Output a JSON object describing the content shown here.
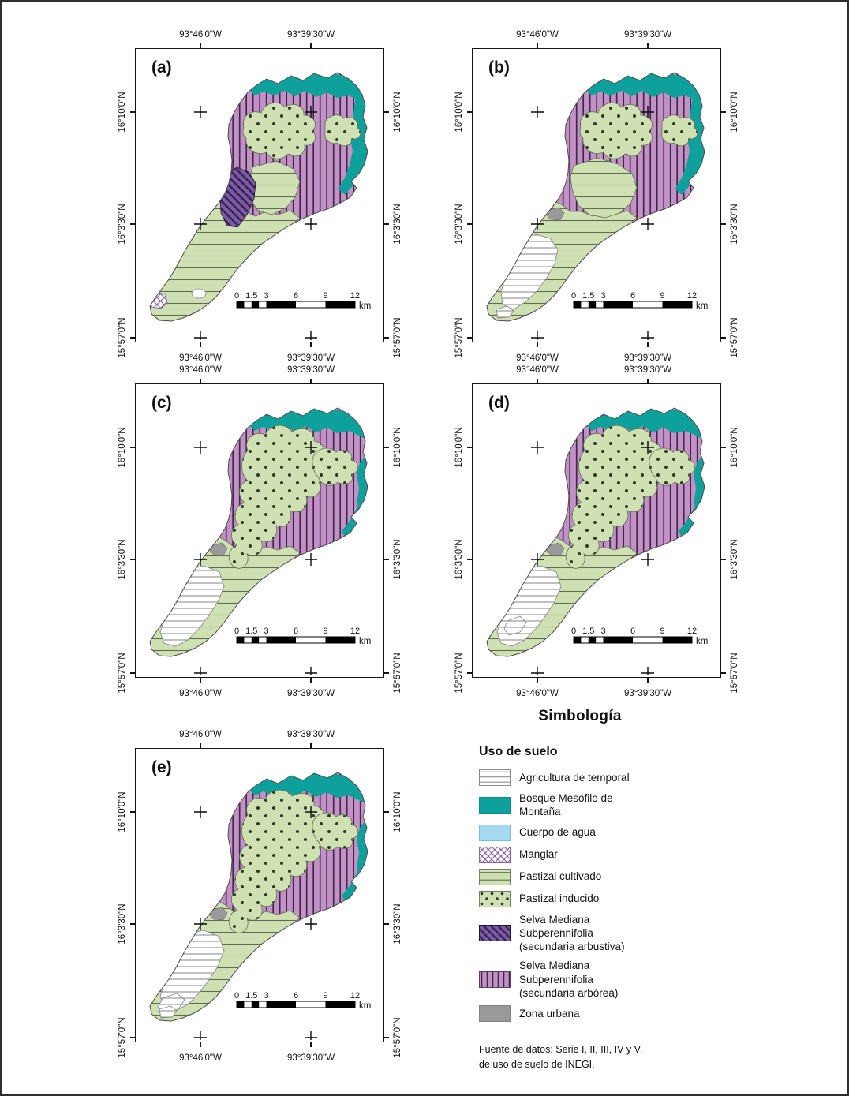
{
  "panels": [
    {
      "id": "a",
      "label": "(a)"
    },
    {
      "id": "b",
      "label": "(b)"
    },
    {
      "id": "c",
      "label": "(c)"
    },
    {
      "id": "d",
      "label": "(d)"
    },
    {
      "id": "e",
      "label": "(e)"
    }
  ],
  "axes": {
    "lon": [
      "93°46'0\"W",
      "93°39'30\"W"
    ],
    "lat": [
      "16°10'0\"N",
      "16°3'30\"N",
      "15°57'0\"N"
    ]
  },
  "scalebar": {
    "ticks": [
      "0",
      "1.5",
      "3",
      "6",
      "9",
      "12"
    ],
    "unit": "km"
  },
  "legend": {
    "title": "Simbología",
    "subtitle": "Uso de suelo",
    "items": [
      {
        "key": "agricultura",
        "label": "Agricultura de temporal"
      },
      {
        "key": "bosque",
        "label": "Bosque Mesófilo de\nMontaña"
      },
      {
        "key": "agua",
        "label": "Cuerpo de agua"
      },
      {
        "key": "manglar",
        "label": "Manglar"
      },
      {
        "key": "pastizal-cultivado",
        "label": "Pastizal cultivado"
      },
      {
        "key": "pastizal-inducido",
        "label": "Pastizal inducido"
      },
      {
        "key": "selva-arbustiva",
        "label": "Selva Mediana\nSubperennifolia\n(secundaria arbustiva)"
      },
      {
        "key": "selva-arborea",
        "label": "Selva Mediana\nSubperennifolia\n(secundaria arbórea)"
      },
      {
        "key": "zona-urbana",
        "label": "Zona urbana"
      }
    ],
    "source": "Fuente de datos: Serie I, II, III, IV y V.\nde uso de suelo de INEGI."
  },
  "colors": {
    "teal": "#0EA19B",
    "water": "#A5D9EF",
    "urban": "#9A9A9A",
    "selva_arborea_fill": "#C291C5",
    "selva_arborea_line": "#40284A",
    "selva_arbustiva_fill": "#7B5BA6",
    "selva_arbustiva_line": "#32204A",
    "pastizal_fill": "#CFE0B2",
    "pastizal_line": "#5F6F55",
    "pastizal_dot": "#2C3A24",
    "agricultura_line": "#909090",
    "manglar_line": "#8A68A8",
    "frame": "#141414"
  }
}
